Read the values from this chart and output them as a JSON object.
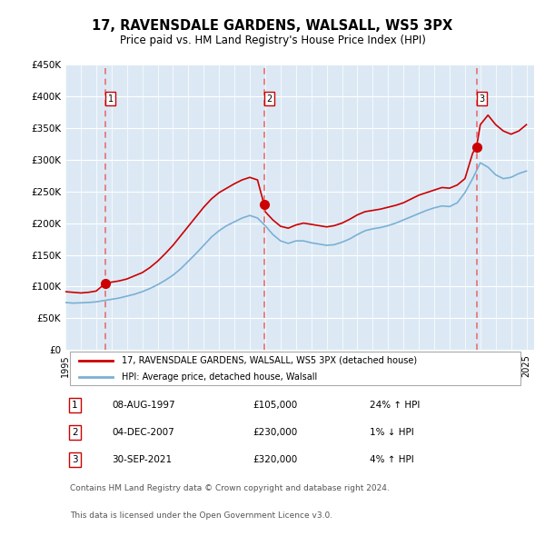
{
  "title": "17, RAVENSDALE GARDENS, WALSALL, WS5 3PX",
  "subtitle": "Price paid vs. HM Land Registry's House Price Index (HPI)",
  "title_fontsize": 11,
  "subtitle_fontsize": 9,
  "ylim": [
    0,
    450000
  ],
  "yticks": [
    0,
    50000,
    100000,
    150000,
    200000,
    250000,
    300000,
    350000,
    400000,
    450000
  ],
  "ytick_labels": [
    "£0",
    "£50K",
    "£100K",
    "£150K",
    "£200K",
    "£250K",
    "£300K",
    "£350K",
    "£400K",
    "£450K"
  ],
  "xlim_start": 1995.0,
  "xlim_end": 2025.5,
  "background_color": "#dce9f5",
  "plot_bg_color": "#dce9f5",
  "grid_color": "#ffffff",
  "red_line_color": "#cc0000",
  "blue_line_color": "#7ab0d4",
  "sale_marker_color": "#cc0000",
  "dashed_line_color": "#e87070",
  "sales": [
    {
      "label": "1",
      "date": "08-AUG-1997",
      "year": 1997.6,
      "price": 105000,
      "hpi_pct": "24%",
      "hpi_dir": "↑"
    },
    {
      "label": "2",
      "date": "04-DEC-2007",
      "year": 2007.92,
      "price": 230000,
      "hpi_pct": "1%",
      "hpi_dir": "↓"
    },
    {
      "label": "3",
      "date": "30-SEP-2021",
      "year": 2021.75,
      "price": 320000,
      "hpi_pct": "4%",
      "hpi_dir": "↑"
    }
  ],
  "legend_line1": "17, RAVENSDALE GARDENS, WALSALL, WS5 3PX (detached house)",
  "legend_line2": "HPI: Average price, detached house, Walsall",
  "footer1": "Contains HM Land Registry data © Crown copyright and database right 2024.",
  "footer2": "This data is licensed under the Open Government Licence v3.0.",
  "red_hpi_line": {
    "x": [
      1995,
      1995.5,
      1996,
      1996.5,
      1997,
      1997.6,
      1997.6,
      1998,
      1998.5,
      1999,
      1999.5,
      2000,
      2000.5,
      2001,
      2001.5,
      2002,
      2002.5,
      2003,
      2003.5,
      2004,
      2004.5,
      2005,
      2005.5,
      2006,
      2006.5,
      2007,
      2007.5,
      2007.92,
      2007.92,
      2008,
      2008.5,
      2009,
      2009.5,
      2010,
      2010.5,
      2011,
      2011.5,
      2012,
      2012.5,
      2013,
      2013.5,
      2014,
      2014.5,
      2015,
      2015.5,
      2016,
      2016.5,
      2017,
      2017.5,
      2018,
      2018.5,
      2019,
      2019.5,
      2020,
      2020.5,
      2021,
      2021.5,
      2021.75,
      2021.75,
      2022,
      2022.5,
      2023,
      2023.5,
      2024,
      2024.5,
      2025
    ],
    "y": [
      92000,
      91000,
      90000,
      91000,
      93000,
      105000,
      105000,
      107000,
      109000,
      112000,
      117000,
      122000,
      130000,
      140000,
      152000,
      165000,
      180000,
      195000,
      210000,
      225000,
      238000,
      248000,
      255000,
      262000,
      268000,
      272000,
      268000,
      230000,
      230000,
      218000,
      205000,
      195000,
      192000,
      197000,
      200000,
      198000,
      196000,
      194000,
      196000,
      200000,
      206000,
      213000,
      218000,
      220000,
      222000,
      225000,
      228000,
      232000,
      238000,
      244000,
      248000,
      252000,
      256000,
      255000,
      260000,
      270000,
      310000,
      320000,
      320000,
      355000,
      370000,
      355000,
      345000,
      340000,
      345000,
      355000
    ]
  },
  "blue_hpi_line": {
    "x": [
      1995,
      1995.5,
      1996,
      1996.5,
      1997,
      1997.5,
      1998,
      1998.5,
      1999,
      1999.5,
      2000,
      2000.5,
      2001,
      2001.5,
      2002,
      2002.5,
      2003,
      2003.5,
      2004,
      2004.5,
      2005,
      2005.5,
      2006,
      2006.5,
      2007,
      2007.5,
      2008,
      2008.5,
      2009,
      2009.5,
      2010,
      2010.5,
      2011,
      2011.5,
      2012,
      2012.5,
      2013,
      2013.5,
      2014,
      2014.5,
      2015,
      2015.5,
      2016,
      2016.5,
      2017,
      2017.5,
      2018,
      2018.5,
      2019,
      2019.5,
      2020,
      2020.5,
      2021,
      2021.5,
      2022,
      2022.5,
      2023,
      2023.5,
      2024,
      2024.5,
      2025
    ],
    "y": [
      75000,
      74000,
      74500,
      75000,
      76000,
      78000,
      80000,
      82000,
      85000,
      88000,
      92000,
      97000,
      103000,
      110000,
      118000,
      128000,
      140000,
      152000,
      165000,
      178000,
      188000,
      196000,
      202000,
      208000,
      212000,
      208000,
      196000,
      182000,
      172000,
      168000,
      172000,
      172000,
      169000,
      167000,
      165000,
      166000,
      170000,
      175000,
      182000,
      188000,
      191000,
      193000,
      196000,
      200000,
      205000,
      210000,
      215000,
      220000,
      224000,
      227000,
      226000,
      232000,
      248000,
      270000,
      295000,
      288000,
      276000,
      270000,
      272000,
      278000,
      282000
    ]
  }
}
